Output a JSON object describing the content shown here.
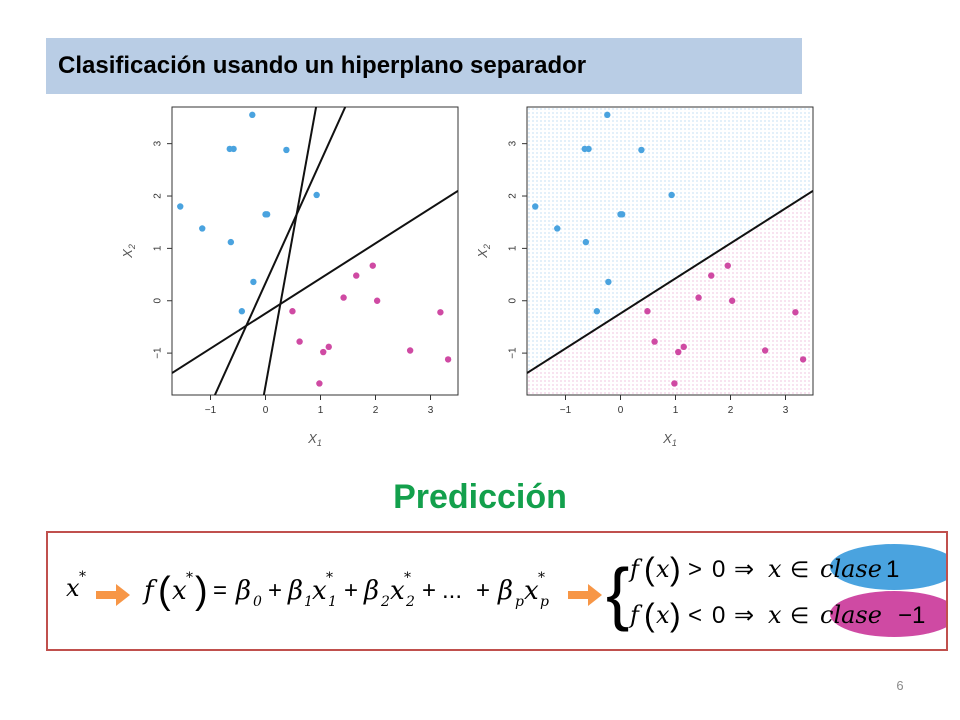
{
  "slide": {
    "title": "Clasificación usando un hiperplano separador",
    "prediction_heading": "Predicción",
    "page_number": "6"
  },
  "colors": {
    "title_bg": "#b9cde5",
    "class1_blue": "#4aa3df",
    "class2_pink": "#cf4aa3",
    "heading_green": "#13a04c",
    "box_border": "#c0504d",
    "arrow_orange": "#f79646"
  },
  "formula": {
    "x_star": "x",
    "star": "*",
    "f": "f",
    "x": "x",
    "equals": "=",
    "beta": "β",
    "plus": "+",
    "ellipsis": "...",
    "sub0": "0",
    "sub1": "1",
    "sub2": "2",
    "subp": "p",
    "gt": ">",
    "lt": "<",
    "zero": "0",
    "implies": "⇒",
    "in": "∈",
    "class1_label": "clase",
    "class1_num": "1",
    "class2_label": "clase",
    "class2_num": "−1",
    "lparen": "(",
    "rparen": ")",
    "brace": "{"
  },
  "chart_data": [
    {
      "type": "scatter",
      "title": "",
      "xlabel": "X1",
      "ylabel": "X2",
      "xlim": [
        -1.7,
        3.5
      ],
      "ylim": [
        -1.8,
        3.7
      ],
      "xticks": [
        "−1",
        "0",
        "1",
        "2",
        "3"
      ],
      "yticks": [
        "−1",
        "0",
        "1",
        "2",
        "3"
      ],
      "series": [
        {
          "color": "#4aa3df",
          "points": [
            [
              -1.55,
              1.8
            ],
            [
              -1.15,
              1.38
            ],
            [
              -0.65,
              2.9
            ],
            [
              -0.58,
              2.9
            ],
            [
              -0.63,
              1.12
            ],
            [
              -0.24,
              3.55
            ],
            [
              0.0,
              1.65
            ],
            [
              0.03,
              1.65
            ],
            [
              0.38,
              2.88
            ],
            [
              0.93,
              2.02
            ],
            [
              -0.43,
              -0.2
            ],
            [
              -0.22,
              0.36
            ]
          ]
        },
        {
          "color": "#cf4aa3",
          "points": [
            [
              0.49,
              -0.2
            ],
            [
              0.62,
              -0.78
            ],
            [
              0.98,
              -1.58
            ],
            [
              1.05,
              -0.98
            ],
            [
              1.15,
              -0.88
            ],
            [
              1.42,
              0.06
            ],
            [
              1.65,
              0.48
            ],
            [
              1.95,
              0.67
            ],
            [
              2.03,
              0.0
            ],
            [
              2.63,
              -0.95
            ],
            [
              3.18,
              -0.22
            ],
            [
              3.32,
              -1.12
            ]
          ]
        }
      ],
      "lines": [
        {
          "x1": -1.7,
          "y1": -1.38,
          "x2": 3.5,
          "y2": 2.1
        },
        {
          "x1": -0.92,
          "y1": -1.8,
          "x2": 1.45,
          "y2": 3.7
        },
        {
          "x1": -0.03,
          "y1": -1.8,
          "x2": 0.92,
          "y2": 3.7
        }
      ],
      "shaded_regions": false,
      "grid": false
    },
    {
      "type": "scatter",
      "title": "",
      "xlabel": "X1",
      "ylabel": "X2",
      "xlim": [
        -1.7,
        3.5
      ],
      "ylim": [
        -1.8,
        3.7
      ],
      "xticks": [
        "−1",
        "0",
        "1",
        "2",
        "3"
      ],
      "yticks": [
        "−1",
        "0",
        "1",
        "2",
        "3"
      ],
      "series": [
        {
          "color": "#4aa3df",
          "points": [
            [
              -1.55,
              1.8
            ],
            [
              -1.15,
              1.38
            ],
            [
              -0.65,
              2.9
            ],
            [
              -0.58,
              2.9
            ],
            [
              -0.63,
              1.12
            ],
            [
              -0.24,
              3.55
            ],
            [
              0.0,
              1.65
            ],
            [
              0.03,
              1.65
            ],
            [
              0.38,
              2.88
            ],
            [
              0.93,
              2.02
            ],
            [
              -0.43,
              -0.2
            ],
            [
              -0.22,
              0.36
            ]
          ]
        },
        {
          "color": "#cf4aa3",
          "points": [
            [
              0.49,
              -0.2
            ],
            [
              0.62,
              -0.78
            ],
            [
              0.98,
              -1.58
            ],
            [
              1.05,
              -0.98
            ],
            [
              1.15,
              -0.88
            ],
            [
              1.42,
              0.06
            ],
            [
              1.65,
              0.48
            ],
            [
              1.95,
              0.67
            ],
            [
              2.03,
              0.0
            ],
            [
              2.63,
              -0.95
            ],
            [
              3.18,
              -0.22
            ],
            [
              3.32,
              -1.12
            ]
          ]
        }
      ],
      "lines": [
        {
          "x1": -1.7,
          "y1": -1.38,
          "x2": 3.5,
          "y2": 2.1
        }
      ],
      "shaded_regions": true,
      "grid": false
    }
  ]
}
